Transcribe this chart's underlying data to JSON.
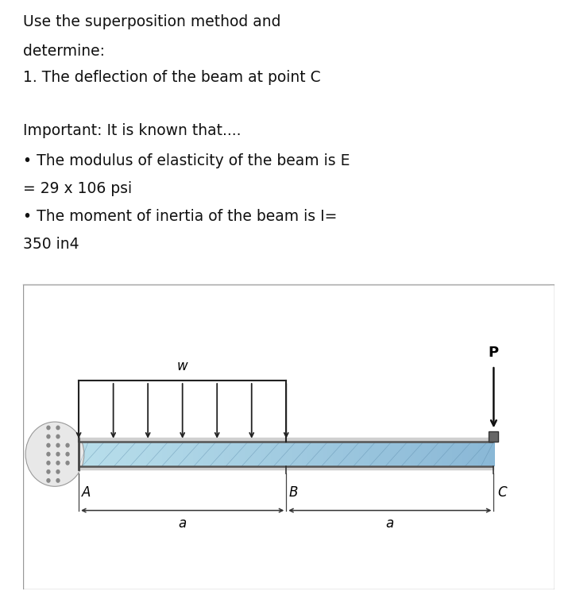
{
  "line1": "Use the superposition method and",
  "line2": "determine:",
  "line3": "1. The deflection of the beam at point C",
  "line4": "Important: It is known that....",
  "line5": "• The modulus of elasticity of the beam is E",
  "line6": "= 29 x 106 psi",
  "line7": "• The moment of inertia of the beam is I=",
  "line8": "350 in4",
  "background_color": "#ffffff",
  "beam_fill_left": "#b8dcea",
  "beam_fill_right": "#5a9bbf",
  "beam_border": "#444444",
  "wall_dot_color": "#aaaaaa",
  "arrow_color": "#222222",
  "dim_color": "#333333",
  "label_color": "#111111",
  "border_color": "#999999",
  "figure_width": 7.2,
  "figure_height": 7.49,
  "dpi": 100
}
